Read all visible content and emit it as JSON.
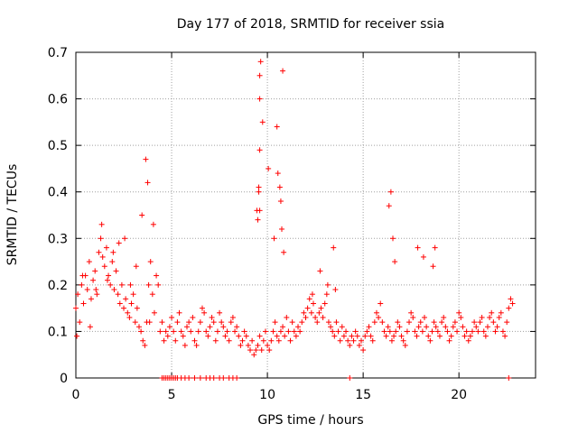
{
  "chart_data": {
    "type": "scatter",
    "title": "Day 177 of 2018, SRMTID for receiver ssia",
    "xlabel": "GPS time / hours",
    "ylabel": "SRMTID / TECUs",
    "xlim": [
      0,
      24
    ],
    "ylim": [
      0,
      0.7
    ],
    "xticks": [
      0,
      5,
      10,
      15,
      20
    ],
    "yticks": [
      0,
      0.1,
      0.2,
      0.3,
      0.4,
      0.5,
      0.6,
      0.7
    ],
    "ytick_labels": [
      "0",
      "0.1",
      "0.2",
      "0.3",
      "0.4",
      "0.5",
      "0.6",
      "0.7"
    ],
    "grid": true,
    "marker": "+",
    "series": [
      {
        "name": "ssia",
        "color": "#ff0000",
        "x": [
          0.0,
          0.1,
          0.2,
          0.3,
          0.4,
          0.5,
          0.6,
          0.7,
          0.8,
          0.9,
          1.0,
          1.1,
          1.2,
          1.3,
          1.4,
          1.5,
          1.6,
          1.7,
          1.8,
          1.9,
          2.0,
          2.1,
          2.2,
          2.3,
          2.4,
          2.5,
          2.6,
          2.7,
          2.8,
          2.9,
          3.0,
          3.1,
          3.2,
          3.3,
          3.4,
          3.5,
          3.6,
          3.7,
          3.8,
          3.9,
          4.0,
          4.1,
          4.2,
          4.3,
          4.4,
          4.5,
          4.6,
          4.7,
          4.8,
          4.9,
          5.0,
          5.1,
          5.2,
          5.3,
          5.4,
          5.5,
          5.6,
          5.7,
          5.8,
          5.9,
          6.0,
          6.1,
          6.2,
          6.3,
          6.4,
          6.5,
          6.6,
          6.7,
          6.8,
          6.9,
          7.0,
          7.1,
          7.2,
          7.3,
          7.4,
          7.5,
          7.6,
          7.7,
          7.8,
          7.9,
          8.0,
          8.1,
          8.2,
          8.3,
          8.4,
          8.5,
          8.6,
          8.7,
          8.8,
          8.9,
          9.0,
          9.1,
          9.2,
          9.3,
          9.4,
          9.5,
          9.6,
          9.7,
          9.8,
          9.9,
          10.0,
          10.1,
          10.2,
          10.3,
          10.4,
          10.5,
          10.6,
          10.7,
          10.8,
          10.9,
          11.0,
          11.1,
          11.2,
          11.3,
          11.4,
          11.5,
          11.6,
          11.7,
          11.8,
          11.9,
          12.0,
          12.1,
          12.2,
          12.3,
          12.4,
          12.5,
          12.6,
          12.7,
          12.8,
          12.9,
          13.0,
          13.1,
          13.2,
          13.3,
          13.4,
          13.5,
          13.6,
          13.7,
          13.8,
          13.9,
          14.0,
          14.1,
          14.2,
          14.3,
          14.4,
          14.5,
          14.6,
          14.7,
          14.8,
          14.9,
          15.0,
          15.1,
          15.2,
          15.3,
          15.4,
          15.5,
          15.6,
          15.7,
          15.8,
          15.9,
          16.0,
          16.1,
          16.2,
          16.3,
          16.4,
          16.5,
          16.6,
          16.7,
          16.8,
          16.9,
          17.0,
          17.1,
          17.2,
          17.3,
          17.4,
          17.5,
          17.6,
          17.7,
          17.8,
          17.9,
          18.0,
          18.1,
          18.2,
          18.3,
          18.4,
          18.5,
          18.6,
          18.7,
          18.8,
          18.9,
          19.0,
          19.1,
          19.2,
          19.3,
          19.4,
          19.5,
          19.6,
          19.7,
          19.8,
          19.9,
          20.0,
          20.1,
          20.2,
          20.3,
          20.4,
          20.5,
          20.6,
          20.7,
          20.8,
          20.9,
          21.0,
          21.1,
          21.2,
          21.3,
          21.4,
          21.5,
          21.6,
          21.7,
          21.8,
          21.9,
          22.0,
          22.1,
          22.2,
          22.3,
          22.4,
          22.5,
          22.6,
          22.7,
          22.8,
          0.05,
          0.35,
          0.75,
          1.05,
          1.35,
          1.65,
          1.95,
          2.25,
          2.55,
          2.85,
          3.15,
          3.45,
          3.85,
          4.05,
          9.45,
          9.55,
          9.65,
          9.75,
          10.05,
          10.35,
          10.55,
          10.75,
          10.85,
          12.35,
          12.75,
          13.15,
          13.45,
          13.55,
          16.35,
          16.45,
          16.55,
          16.65,
          17.85,
          18.15,
          18.65,
          18.75,
          3.65,
          3.75,
          9.6,
          9.6,
          9.6,
          9.6,
          9.5,
          9.55,
          10.5,
          10.8,
          10.7,
          10.65,
          4.5,
          4.6,
          4.7,
          4.8,
          4.9,
          5.0,
          5.1,
          5.2,
          5.3,
          5.5,
          5.7,
          5.9,
          6.2,
          6.5,
          6.8,
          7.0,
          7.2,
          7.5,
          7.7,
          8.0,
          8.2,
          8.4,
          14.3,
          22.6
        ],
        "y": [
          0.15,
          0.18,
          0.12,
          0.2,
          0.16,
          0.22,
          0.19,
          0.25,
          0.17,
          0.21,
          0.23,
          0.18,
          0.27,
          0.3,
          0.26,
          0.24,
          0.28,
          0.22,
          0.2,
          0.25,
          0.19,
          0.23,
          0.18,
          0.16,
          0.2,
          0.15,
          0.17,
          0.14,
          0.13,
          0.16,
          0.18,
          0.12,
          0.15,
          0.11,
          0.1,
          0.08,
          0.07,
          0.12,
          0.2,
          0.25,
          0.18,
          0.14,
          0.22,
          0.2,
          0.1,
          0.12,
          0.08,
          0.1,
          0.09,
          0.11,
          0.13,
          0.1,
          0.08,
          0.12,
          0.14,
          0.1,
          0.09,
          0.07,
          0.11,
          0.12,
          0.1,
          0.13,
          0.08,
          0.07,
          0.1,
          0.12,
          0.15,
          0.14,
          0.1,
          0.09,
          0.11,
          0.13,
          0.12,
          0.08,
          0.1,
          0.14,
          0.12,
          0.11,
          0.09,
          0.1,
          0.08,
          0.12,
          0.13,
          0.1,
          0.11,
          0.09,
          0.07,
          0.08,
          0.1,
          0.09,
          0.07,
          0.06,
          0.08,
          0.05,
          0.06,
          0.07,
          0.09,
          0.06,
          0.08,
          0.1,
          0.07,
          0.06,
          0.08,
          0.1,
          0.12,
          0.09,
          0.08,
          0.1,
          0.11,
          0.09,
          0.13,
          0.1,
          0.08,
          0.12,
          0.1,
          0.09,
          0.11,
          0.1,
          0.12,
          0.14,
          0.13,
          0.15,
          0.17,
          0.14,
          0.16,
          0.13,
          0.12,
          0.14,
          0.15,
          0.13,
          0.16,
          0.18,
          0.12,
          0.11,
          0.1,
          0.09,
          0.12,
          0.1,
          0.08,
          0.11,
          0.09,
          0.1,
          0.08,
          0.07,
          0.09,
          0.08,
          0.1,
          0.09,
          0.07,
          0.08,
          0.06,
          0.09,
          0.1,
          0.11,
          0.09,
          0.08,
          0.12,
          0.14,
          0.13,
          0.16,
          0.12,
          0.1,
          0.09,
          0.11,
          0.1,
          0.08,
          0.09,
          0.1,
          0.12,
          0.11,
          0.09,
          0.08,
          0.07,
          0.1,
          0.12,
          0.14,
          0.13,
          0.1,
          0.09,
          0.11,
          0.12,
          0.1,
          0.13,
          0.11,
          0.09,
          0.08,
          0.1,
          0.12,
          0.11,
          0.1,
          0.09,
          0.12,
          0.13,
          0.11,
          0.1,
          0.08,
          0.09,
          0.11,
          0.12,
          0.1,
          0.14,
          0.13,
          0.11,
          0.09,
          0.1,
          0.08,
          0.09,
          0.1,
          0.12,
          0.11,
          0.1,
          0.12,
          0.13,
          0.1,
          0.09,
          0.11,
          0.13,
          0.14,
          0.12,
          0.1,
          0.11,
          0.13,
          0.14,
          0.1,
          0.09,
          0.12,
          0.15,
          0.17,
          0.16,
          0.09,
          0.22,
          0.11,
          0.19,
          0.33,
          0.21,
          0.27,
          0.29,
          0.3,
          0.2,
          0.24,
          0.35,
          0.12,
          0.33,
          0.36,
          0.4,
          0.68,
          0.55,
          0.45,
          0.3,
          0.44,
          0.32,
          0.27,
          0.18,
          0.23,
          0.2,
          0.28,
          0.19,
          0.37,
          0.4,
          0.3,
          0.25,
          0.28,
          0.26,
          0.24,
          0.28,
          0.47,
          0.42,
          0.65,
          0.6,
          0.49,
          0.36,
          0.34,
          0.41,
          0.54,
          0.66,
          0.38,
          0.41,
          0.0,
          0.0,
          0.0,
          0.0,
          0.0,
          0.0,
          0.0,
          0.0,
          0.0,
          0.0,
          0.0,
          0.0,
          0.0,
          0.0,
          0.0,
          0.0,
          0.0,
          0.0,
          0.0,
          0.0,
          0.0,
          0.0,
          0.0,
          0.0
        ]
      }
    ]
  }
}
